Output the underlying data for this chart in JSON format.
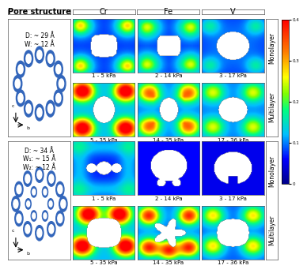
{
  "title": "",
  "col_headers": [
    "Pore structure",
    "Cr",
    "Fe",
    "V"
  ],
  "row_labels_top": [
    "Monolayer",
    "Multilayer"
  ],
  "row_labels_bottom": [
    "Monolayer",
    "Multilayer"
  ],
  "pore1_text": [
    "D: ~ 29 Å",
    "W: ~ 12 Å"
  ],
  "pore2_text": [
    "D: ~ 34 Å",
    "W₁: ~ 15 Å",
    "W₂: ~ 12 Å"
  ],
  "pressure_labels_top_mono": [
    "1 - 5 kPa",
    "2 - 14 kPa",
    "3 - 17 kPa"
  ],
  "pressure_labels_top_multi": [
    "5 - 35 kPa",
    "14 - 35 kPa",
    "17 - 36 kPa"
  ],
  "pressure_labels_bot_mono": [
    "1 - 5 kPa",
    "2 - 14 kPa",
    "3 - 17 kPa"
  ],
  "pressure_labels_bot_multi": [
    "5 - 35 kPa",
    "14 - 35 kPa",
    "17 - 36 kPa"
  ],
  "colorbar_max": 0.4,
  "bg_color": "#ffffff",
  "grid_line_color": "#555555",
  "text_color": "#000000",
  "font_size_header": 7,
  "font_size_pore": 5.5,
  "font_size_pressure": 5,
  "font_size_side": 5.5
}
